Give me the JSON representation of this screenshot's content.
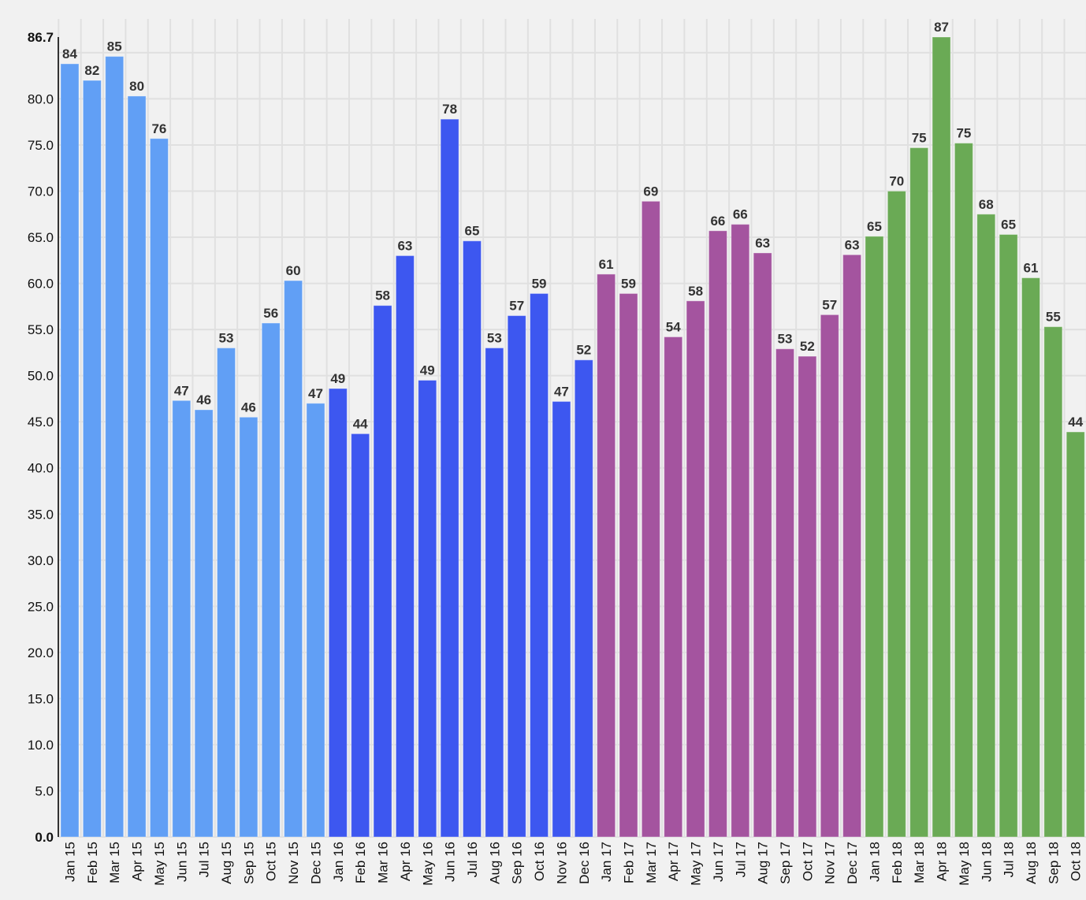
{
  "chart_data": {
    "type": "bar",
    "title": "",
    "xlabel": "",
    "ylabel": "",
    "ylim": [
      0,
      86.7
    ],
    "y_ticks": [
      "0.0",
      "5.0",
      "10.0",
      "15.0",
      "20.0",
      "25.0",
      "30.0",
      "35.0",
      "40.0",
      "45.0",
      "50.0",
      "55.0",
      "60.0",
      "65.0",
      "70.0",
      "75.0",
      "80.0",
      "86.7"
    ],
    "grid": true,
    "legend": "none",
    "categories": [
      "Jan 15",
      "Feb 15",
      "Mar 15",
      "Apr 15",
      "May 15",
      "Jun 15",
      "Jul 15",
      "Aug 15",
      "Sep 15",
      "Oct 15",
      "Nov 15",
      "Dec 15",
      "Jan 16",
      "Feb 16",
      "Mar 16",
      "Apr 16",
      "May 16",
      "Jun 16",
      "Jul 16",
      "Aug 16",
      "Sep 16",
      "Oct 16",
      "Nov 16",
      "Dec 16",
      "Jan 17",
      "Feb 17",
      "Mar 17",
      "Apr 17",
      "May 17",
      "Jun 17",
      "Jul 17",
      "Aug 17",
      "Sep 17",
      "Oct 17",
      "Nov 17",
      "Dec 17",
      "Jan 18",
      "Feb 18",
      "Mar 18",
      "Apr 18",
      "May 18",
      "Jun 18",
      "Jul 18",
      "Aug 18",
      "Sep 18",
      "Oct 18"
    ],
    "values": [
      83.8,
      82.0,
      84.6,
      80.3,
      75.7,
      47.3,
      46.3,
      53.0,
      45.5,
      55.7,
      60.3,
      47.0,
      48.6,
      43.7,
      57.6,
      63.0,
      49.5,
      77.8,
      64.6,
      53.0,
      56.5,
      58.9,
      47.2,
      51.7,
      61.0,
      58.9,
      68.9,
      54.2,
      58.1,
      65.7,
      66.4,
      63.3,
      52.9,
      52.1,
      56.6,
      63.1,
      65.1,
      70.0,
      74.7,
      86.7,
      75.2,
      67.5,
      65.3,
      60.6,
      55.3,
      43.9
    ],
    "data_labels": [
      "84",
      "82",
      "85",
      "80",
      "76",
      "47",
      "46",
      "53",
      "46",
      "56",
      "60",
      "47",
      "49",
      "44",
      "58",
      "63",
      "49",
      "78",
      "65",
      "53",
      "57",
      "59",
      "47",
      "52",
      "61",
      "59",
      "69",
      "54",
      "58",
      "66",
      "66",
      "63",
      "53",
      "52",
      "57",
      "63",
      "65",
      "70",
      "75",
      "87",
      "75",
      "68",
      "65",
      "61",
      "55",
      "44"
    ],
    "series_colors": {
      "2015": "#619ff5",
      "2016": "#3d57f0",
      "2017": "#a4549f",
      "2018": "#6aaa55"
    }
  }
}
